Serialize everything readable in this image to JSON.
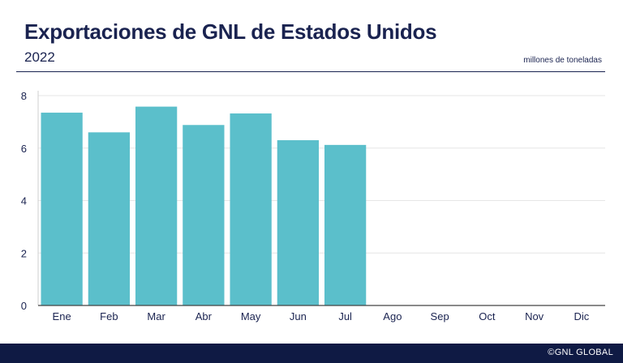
{
  "header": {
    "title": "Exportaciones de GNL de Estados Unidos",
    "subtitle": "2022",
    "unit": "millones de toneladas"
  },
  "footer": {
    "credit": "©GNL GLOBAL",
    "background": "#0f1a44"
  },
  "colors": {
    "bar": "#5bbfcb",
    "text": "#1a2350",
    "grid": "#e6e6e6"
  },
  "chart_data": {
    "type": "bar",
    "categories": [
      "Ene",
      "Feb",
      "Mar",
      "Abr",
      "May",
      "Jun",
      "Jul",
      "Ago",
      "Sep",
      "Oct",
      "Nov",
      "Dic"
    ],
    "values": [
      7.35,
      6.6,
      7.58,
      6.88,
      7.32,
      6.3,
      6.12,
      null,
      null,
      null,
      null,
      null
    ],
    "yticks": [
      0,
      2,
      4,
      6,
      8
    ],
    "ylim": [
      0,
      8.2
    ],
    "title": "Exportaciones de GNL de Estados Unidos",
    "subtitle": "2022",
    "xlabel": "",
    "ylabel": "millones de toneladas",
    "grid": true,
    "legend": "none"
  }
}
